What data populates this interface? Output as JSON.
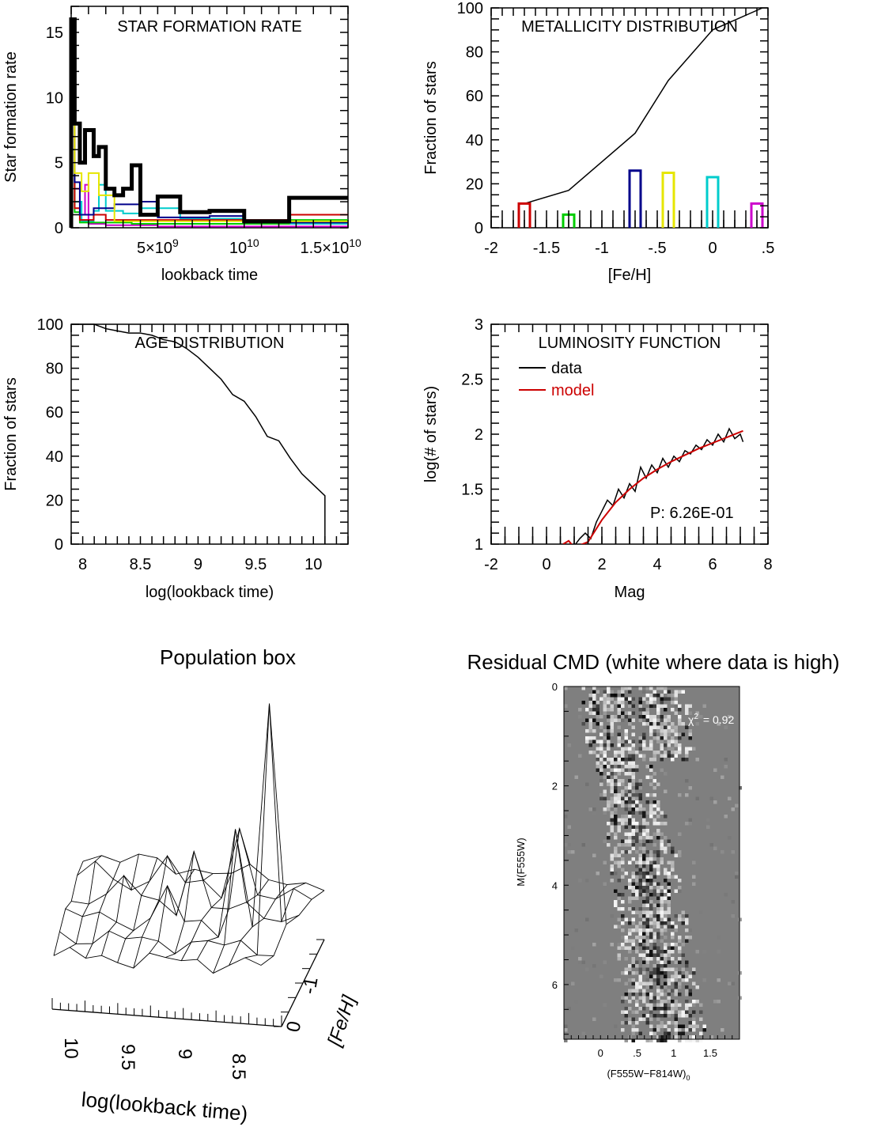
{
  "chart_data": [
    {
      "id": "sfr",
      "type": "line",
      "title": "STAR FORMATION RATE",
      "xlabel": "lookback time",
      "ylabel": "Star formation rate",
      "xlim": [
        0,
        16000000000.0
      ],
      "ylim": [
        0,
        17
      ],
      "xticks": [
        {
          "v": 5000000000.0,
          "m": "5×10",
          "e": "9"
        },
        {
          "v": 10000000000.0,
          "m": "10",
          "e": "10"
        },
        {
          "v": 15000000000.0,
          "m": "1.5×10",
          "e": "10"
        }
      ],
      "yticks": [
        0,
        5,
        10,
        15
      ],
      "series": [
        {
          "color": "#000000",
          "width": 5,
          "x": [
            0,
            0,
            200000000.0,
            200000000.0,
            500000000.0,
            500000000.0,
            800000000.0,
            800000000.0,
            1300000000.0,
            1300000000.0,
            1600000000.0,
            1600000000.0,
            2000000000.0,
            2000000000.0,
            2500000000.0,
            2500000000.0,
            3000000000.0,
            3000000000.0,
            3500000000.0,
            3500000000.0,
            4000000000.0,
            4000000000.0,
            5000000000.0,
            5000000000.0,
            6300000000.0,
            6300000000.0,
            8000000000.0,
            8000000000.0,
            10000000000.0,
            10000000000.0,
            12600000000.0,
            12600000000.0,
            16000000000.0
          ],
          "y": [
            0,
            16,
            16,
            8,
            8,
            5,
            5,
            7.5,
            7.5,
            5.5,
            5.5,
            6.2,
            6.2,
            3,
            3,
            2.5,
            2.5,
            3,
            3,
            4.8,
            4.8,
            1,
            1,
            2.4,
            2.4,
            1.2,
            1.2,
            1.3,
            1.3,
            0.5,
            0.5,
            2.3,
            2.3
          ]
        },
        {
          "color": "#e6e600",
          "width": 2,
          "x": [
            0,
            0,
            200000000.0,
            200000000.0,
            600000000.0,
            600000000.0,
            1000000000.0,
            1000000000.0,
            1600000000.0,
            1600000000.0,
            2500000000.0,
            2500000000.0,
            16000000000.0
          ],
          "y": [
            0,
            9,
            9,
            4.2,
            4.2,
            2.8,
            2.8,
            4.2,
            4.2,
            2.5,
            2.5,
            0.5,
            0.5
          ]
        },
        {
          "color": "#00008b",
          "width": 2,
          "x": [
            0,
            0,
            200000000.0,
            200000000.0,
            500000000.0,
            500000000.0,
            1300000000.0,
            1300000000.0,
            2500000000.0,
            2500000000.0,
            4000000000.0,
            4000000000.0,
            5000000000.0,
            5000000000.0,
            8000000000.0,
            8000000000.0,
            10000000000.0,
            10000000000.0,
            16000000000.0
          ],
          "y": [
            0,
            10,
            10,
            3.5,
            3.5,
            1.0,
            1.0,
            1.5,
            1.5,
            1.8,
            1.8,
            2.0,
            2.0,
            0.8,
            0.8,
            0.9,
            0.9,
            0.4,
            0.4
          ]
        },
        {
          "color": "#cc0000",
          "width": 2,
          "x": [
            0,
            0,
            200000000.0,
            200000000.0,
            500000000.0,
            500000000.0,
            1300000000.0,
            1300000000.0,
            2000000000.0,
            2000000000.0,
            12600000000.0,
            12600000000.0,
            16000000000.0
          ],
          "y": [
            0,
            8,
            8,
            1.5,
            1.5,
            0.6,
            0.6,
            1.0,
            1.0,
            0.6,
            0.6,
            1.0,
            1.0
          ]
        },
        {
          "color": "#00cc00",
          "width": 2,
          "x": [
            0,
            0,
            200000000.0,
            200000000.0,
            500000000.0,
            500000000.0,
            3500000000.0,
            3500000000.0,
            12600000000.0,
            12600000000.0,
            16000000000.0
          ],
          "y": [
            0,
            6,
            6,
            1.2,
            1.2,
            0.4,
            0.4,
            0.3,
            0.3,
            0.6,
            0.6
          ]
        },
        {
          "color": "#00cccc",
          "width": 2,
          "x": [
            0,
            0,
            200000000.0,
            200000000.0,
            600000000.0,
            600000000.0,
            1300000000.0,
            1300000000.0,
            1600000000.0,
            1600000000.0,
            2000000000.0,
            2000000000.0,
            3000000000.0,
            3000000000.0,
            4000000000.0,
            4000000000.0,
            6300000000.0,
            6300000000.0,
            10000000000.0,
            10000000000.0,
            16000000000.0
          ],
          "y": [
            0,
            13.5,
            13.5,
            2.0,
            2.0,
            0.5,
            0.5,
            1.3,
            1.3,
            3.3,
            3.3,
            1.3,
            1.3,
            1.1,
            1.1,
            1.5,
            1.5,
            0.7,
            0.7,
            0.3,
            0.3
          ]
        },
        {
          "color": "#cc00cc",
          "width": 2,
          "x": [
            0,
            0,
            200000000.0,
            200000000.0,
            500000000.0,
            500000000.0,
            800000000.0,
            800000000.0,
            1000000000.0,
            1000000000.0,
            2000000000.0,
            2000000000.0,
            5000000000.0,
            5000000000.0,
            16000000000.0
          ],
          "y": [
            0,
            7,
            7,
            3,
            3,
            1.0,
            1.0,
            3.3,
            3.3,
            0.3,
            0.3,
            0.2,
            0.2,
            0.1,
            0.1
          ]
        }
      ]
    },
    {
      "id": "met",
      "type": "line",
      "title": "METALLICITY DISTRIBUTION",
      "xlabel": "[Fe/H]",
      "ylabel": "Fraction of stars",
      "xlim": [
        -2,
        0.5
      ],
      "ylim": [
        0,
        100
      ],
      "xticks": [
        {
          "v": -2,
          "l": "-2"
        },
        {
          "v": -1.5,
          "l": "-1.5"
        },
        {
          "v": -1,
          "l": "-1"
        },
        {
          "v": -0.5,
          "l": "-.5"
        },
        {
          "v": 0,
          "l": "0"
        },
        {
          "v": 0.5,
          "l": ".5"
        }
      ],
      "yticks": [
        0,
        20,
        40,
        60,
        80,
        100
      ],
      "cumulative": {
        "color": "#000000",
        "x": [
          -1.7,
          -1.3,
          -0.7,
          -0.4,
          0.0,
          0.45
        ],
        "y": [
          11,
          17,
          43,
          67,
          90,
          100
        ]
      },
      "bars": [
        {
          "x": -1.7,
          "value": 11,
          "color": "#cc0000"
        },
        {
          "x": -1.3,
          "value": 6,
          "color": "#00cc00"
        },
        {
          "x": -0.7,
          "value": 26,
          "color": "#00008b"
        },
        {
          "x": -0.4,
          "value": 25,
          "color": "#e6e600"
        },
        {
          "x": 0.0,
          "value": 23,
          "color": "#00cccc"
        },
        {
          "x": 0.4,
          "value": 11,
          "color": "#cc00cc"
        }
      ]
    },
    {
      "id": "age",
      "type": "line",
      "title": "AGE DISTRIBUTION",
      "xlabel": "log(lookback time)",
      "ylabel": "Fraction of stars",
      "xlim": [
        7.9,
        10.3
      ],
      "ylim": [
        0,
        100
      ],
      "xticks": [
        {
          "v": 8,
          "l": "8"
        },
        {
          "v": 8.5,
          "l": "8.5"
        },
        {
          "v": 9,
          "l": "9"
        },
        {
          "v": 9.5,
          "l": "9.5"
        },
        {
          "v": 10,
          "l": "10"
        }
      ],
      "yticks": [
        0,
        20,
        40,
        60,
        80,
        100
      ],
      "series": [
        {
          "color": "#000000",
          "width": 1.5,
          "x": [
            7.9,
            8.1,
            8.2,
            8.3,
            8.4,
            8.5,
            8.6,
            8.7,
            8.8,
            8.9,
            9.0,
            9.1,
            9.2,
            9.3,
            9.4,
            9.5,
            9.6,
            9.7,
            9.8,
            9.9,
            10.0,
            10.1,
            10.1
          ],
          "y": [
            100,
            100,
            98,
            97,
            96,
            96,
            95,
            93,
            92,
            89,
            85,
            80,
            75,
            68,
            65,
            58,
            49,
            47,
            39,
            32,
            27,
            22,
            0
          ]
        }
      ]
    },
    {
      "id": "lf",
      "type": "line",
      "title": "LUMINOSITY FUNCTION",
      "xlabel": "Mag",
      "ylabel": "log(# of stars)",
      "xlim": [
        -2,
        8
      ],
      "ylim": [
        1,
        3
      ],
      "xticks": [
        {
          "v": -2,
          "l": "-2"
        },
        {
          "v": 0,
          "l": "0"
        },
        {
          "v": 2,
          "l": "2"
        },
        {
          "v": 4,
          "l": "4"
        },
        {
          "v": 6,
          "l": "6"
        },
        {
          "v": 8,
          "l": "8"
        }
      ],
      "yticks": [
        {
          "v": 1,
          "l": "1"
        },
        {
          "v": 1.5,
          "l": "1.5"
        },
        {
          "v": 2,
          "l": "2"
        },
        {
          "v": 2.5,
          "l": "2.5"
        },
        {
          "v": 3,
          "l": "3"
        }
      ],
      "legend": [
        {
          "label": "data",
          "color": "#000000"
        },
        {
          "label": "model",
          "color": "#cc0000"
        }
      ],
      "annotation": "P: 6.26E-01",
      "series": [
        {
          "name": "data",
          "color": "#000000",
          "width": 1.5,
          "x": [
            0.6,
            0.9,
            1.2,
            1.4,
            1.6,
            1.8,
            2.0,
            2.2,
            2.4,
            2.6,
            2.8,
            3.0,
            3.2,
            3.4,
            3.6,
            3.8,
            4.0,
            4.2,
            4.4,
            4.6,
            4.8,
            5.0,
            5.2,
            5.4,
            5.6,
            5.8,
            6.0,
            6.2,
            6.4,
            6.6,
            6.8,
            7.0,
            7.1
          ],
          "y": [
            1.0,
            0.95,
            1.05,
            1.1,
            1.05,
            1.2,
            1.3,
            1.4,
            1.35,
            1.5,
            1.42,
            1.55,
            1.48,
            1.7,
            1.6,
            1.72,
            1.65,
            1.78,
            1.7,
            1.8,
            1.75,
            1.85,
            1.82,
            1.9,
            1.86,
            1.95,
            1.9,
            2.0,
            1.93,
            2.05,
            1.96,
            2.0,
            1.93
          ]
        },
        {
          "name": "model",
          "color": "#cc0000",
          "width": 2,
          "x": [
            0.6,
            0.8,
            1.0,
            1.5,
            2.0,
            2.5,
            3.0,
            3.5,
            4.0,
            4.5,
            5.0,
            5.5,
            6.0,
            6.5,
            7.0,
            7.1
          ],
          "y": [
            1.0,
            1.03,
            0.97,
            1.02,
            1.22,
            1.38,
            1.5,
            1.6,
            1.68,
            1.75,
            1.81,
            1.87,
            1.92,
            1.97,
            2.02,
            2.03
          ]
        }
      ]
    },
    {
      "id": "popbox",
      "type": "surface",
      "title": "Population box",
      "xlabel": "log(lookback time)",
      "ylabel": "[Fe/H]",
      "xticks": [
        {
          "v": 10,
          "l": "10"
        },
        {
          "v": 9.5,
          "l": "9.5"
        },
        {
          "v": 9,
          "l": "9"
        },
        {
          "v": 8.5,
          "l": "8.5"
        }
      ],
      "yticks": [
        {
          "v": 0,
          "l": "0"
        },
        {
          "v": -1,
          "l": "-1"
        }
      ],
      "grid_size": [
        14,
        6
      ],
      "spikes": [
        {
          "i": 12,
          "j": 2,
          "h": 5.5
        },
        {
          "i": 10,
          "j": 2,
          "h": 2.6
        },
        {
          "i": 9,
          "j": 4,
          "h": 1.8
        },
        {
          "i": 7,
          "j": 3,
          "h": 1.6
        },
        {
          "i": 6,
          "j": 2,
          "h": 1.2
        },
        {
          "i": 5,
          "j": 4,
          "h": 1.0
        },
        {
          "i": 3,
          "j": 3,
          "h": 0.9
        },
        {
          "i": 1,
          "j": 4,
          "h": 0.7
        }
      ]
    },
    {
      "id": "cmd",
      "type": "heatmap",
      "title": "Residual CMD (white where data is high)",
      "xlabel": "(F555W−F814W)",
      "xlabel_sub": "0",
      "ylabel": "M(F555W)",
      "xlim": [
        -0.5,
        1.9
      ],
      "ylim": [
        0,
        7.1
      ],
      "xticks": [
        {
          "v": 0,
          "l": "0"
        },
        {
          "v": 0.5,
          "l": ".5"
        },
        {
          "v": 1,
          "l": "1"
        },
        {
          "v": 1.5,
          "l": "1.5"
        }
      ],
      "yticks": [
        {
          "v": 0,
          "l": "0"
        },
        {
          "v": 2,
          "l": "2"
        },
        {
          "v": 4,
          "l": "4"
        },
        {
          "v": 6,
          "l": "6"
        }
      ],
      "annotation_label": "χ",
      "annotation_sup": "2",
      "annotation_value": "= 0.92",
      "background": "#7f7f7f"
    }
  ]
}
